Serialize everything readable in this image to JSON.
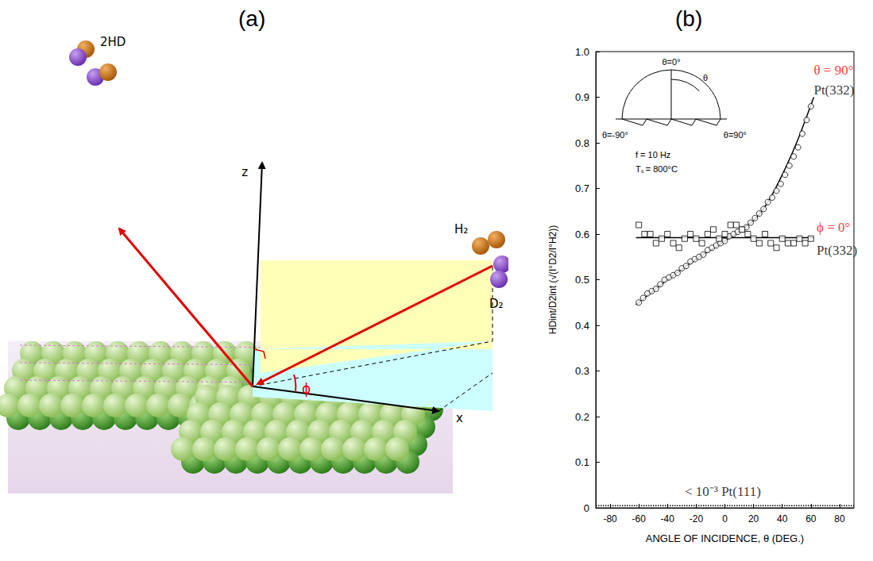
{
  "panels": {
    "a": "(a)",
    "b": "(b)"
  },
  "diagram": {
    "labels": {
      "product": "2HD",
      "z_axis": "z",
      "x_axis": "x",
      "reactant_1": "H₂",
      "reactant_2": "D₂",
      "azimuth": "ϕ"
    }
  },
  "chart_data": {
    "type": "scatter",
    "xlabel": "ANGLE OF INCIDENCE, θ (DEG.)",
    "ylabel": "HDint/D2int (√(I°D2/I°H2))",
    "xlim": [
      -90,
      90
    ],
    "xticks": [
      -80,
      -60,
      -40,
      -20,
      0,
      20,
      40,
      60,
      80
    ],
    "ylim": [
      0,
      1
    ],
    "yticks": [
      0,
      0.1,
      0.2,
      0.3,
      0.4,
      0.5,
      0.6,
      0.7,
      0.8,
      0.9,
      {
        "value": 1,
        "label": "1.0"
      }
    ],
    "grid": false,
    "series": [
      {
        "type": "scatter",
        "marker": "circle_open",
        "color": "#000000",
        "x": [
          -60,
          -57,
          -54,
          -51,
          -48,
          -45,
          -42,
          -39,
          -36,
          -33,
          -30,
          -27,
          -24,
          -21,
          -18,
          -15,
          -12,
          -9,
          -6,
          -3,
          0,
          3,
          6,
          9,
          12,
          15,
          18,
          21,
          24,
          27,
          30,
          33,
          36,
          39,
          42,
          45,
          48,
          51,
          54,
          57,
          60
        ],
        "values": [
          0.45,
          0.46,
          0.47,
          0.475,
          0.48,
          0.49,
          0.5,
          0.505,
          0.51,
          0.515,
          0.525,
          0.53,
          0.54,
          0.545,
          0.55,
          0.555,
          0.565,
          0.57,
          0.575,
          0.58,
          0.585,
          0.595,
          0.6,
          0.605,
          0.61,
          0.615,
          0.625,
          0.635,
          0.645,
          0.655,
          0.67,
          0.68,
          0.695,
          0.71,
          0.73,
          0.75,
          0.77,
          0.79,
          0.82,
          0.85,
          0.88
        ]
      },
      {
        "type": "line",
        "marker": "none",
        "line_style": "solid",
        "color": "#000000",
        "x": [
          -62,
          -40,
          -20,
          0,
          20,
          30,
          40,
          50,
          62
        ],
        "values": [
          0.445,
          0.5,
          0.545,
          0.585,
          0.63,
          0.67,
          0.73,
          0.8,
          0.9
        ]
      },
      {
        "type": "scatter",
        "marker": "square_open",
        "color": "#000000",
        "x": [
          -60,
          -56,
          -52,
          -48,
          -44,
          -40,
          -36,
          -32,
          -28,
          -24,
          -20,
          -16,
          -12,
          -8,
          -4,
          0,
          4,
          8,
          12,
          16,
          20,
          24,
          28,
          32,
          36,
          40,
          44,
          48,
          52,
          56,
          60
        ],
        "values": [
          0.62,
          0.6,
          0.6,
          0.58,
          0.59,
          0.6,
          0.58,
          0.57,
          0.59,
          0.6,
          0.59,
          0.58,
          0.6,
          0.61,
          0.59,
          0.6,
          0.62,
          0.62,
          0.61,
          0.6,
          0.59,
          0.58,
          0.6,
          0.58,
          0.57,
          0.59,
          0.58,
          0.58,
          0.59,
          0.58,
          0.59
        ]
      },
      {
        "type": "line",
        "marker": "none",
        "line_style": "solid",
        "color": "#000000",
        "x": [
          -62,
          62
        ],
        "values": [
          0.592,
          0.592
        ]
      },
      {
        "type": "line",
        "marker": "none",
        "line_style": "dotted",
        "color": "#000000",
        "x": [
          -90,
          90
        ],
        "values": [
          0.005,
          0.005
        ]
      }
    ],
    "annotations": [
      {
        "text": "θ = 90°",
        "x": 62,
        "y": 0.96,
        "color": "#ff0000"
      },
      {
        "text": "Pt(332)",
        "x": 62,
        "y": 0.915,
        "color": "#000000"
      },
      {
        "text": "ϕ = 0°",
        "x": 64,
        "y": 0.615,
        "color": "#ff0000"
      },
      {
        "text": "Pt(332)",
        "x": 64,
        "y": 0.565,
        "color": "#000000"
      },
      {
        "text": "< 10⁻³ Pt(111)",
        "x": -28,
        "y": 0.035,
        "color": "#000000"
      }
    ],
    "inset": {
      "top": "θ=0°",
      "left": "θ=-90°",
      "right": "θ=90°",
      "arc": "θ",
      "frequency": "f = 10 Hz",
      "temperature": "Tₛ = 800°C"
    }
  }
}
